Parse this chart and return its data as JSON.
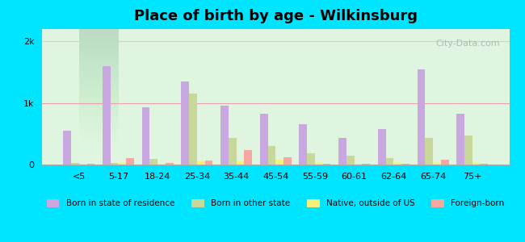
{
  "title": "Place of birth by age - Wilkinsburg",
  "background_color": "#00e5ff",
  "plot_bg_top": "#e8f5e9",
  "plot_bg_bottom": "#f0fff0",
  "categories": [
    "<5",
    "5-17",
    "18-24",
    "25-34",
    "35-44",
    "45-54",
    "55-59",
    "60-61",
    "62-64",
    "65-74",
    "75+"
  ],
  "series": {
    "born_in_state": {
      "label": "Born in state of residence",
      "color": "#c9a8e0",
      "values": [
        550,
        1600,
        930,
        1350,
        950,
        820,
        650,
        430,
        580,
        1550,
        820
      ]
    },
    "born_other_state": {
      "label": "Born in other state",
      "color": "#c8d89a",
      "values": [
        20,
        30,
        90,
        1150,
        430,
        300,
        185,
        140,
        110,
        430,
        470
      ]
    },
    "native_outside": {
      "label": "Native, outside of US",
      "color": "#f5f07a",
      "values": [
        15,
        20,
        10,
        55,
        50,
        80,
        20,
        15,
        20,
        20,
        25
      ]
    },
    "foreign_born": {
      "label": "Foreign-born",
      "color": "#f5a8a0",
      "values": [
        10,
        110,
        20,
        60,
        230,
        120,
        15,
        10,
        15,
        80,
        10
      ]
    }
  },
  "ylim": [
    0,
    2200
  ],
  "yticks": [
    0,
    1000,
    2000
  ],
  "ytick_labels": [
    "0",
    "1k",
    "2k"
  ],
  "bar_width": 0.2,
  "figsize": [
    6.5,
    3.0
  ],
  "dpi": 100
}
